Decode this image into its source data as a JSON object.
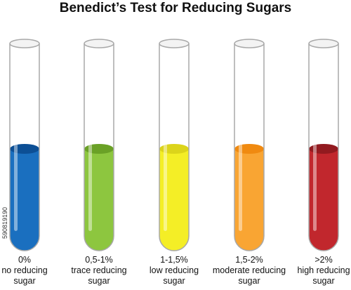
{
  "title": "Benedict’s Test for Reducing Sugars",
  "tubes": [
    {
      "concentration": "0%",
      "description_line1": "no reducing",
      "description_line2": "sugar",
      "color": "#1a6fbf",
      "dark": "#0c4f95"
    },
    {
      "concentration": "0,5-1%",
      "description_line1": "trace reducing",
      "description_line2": "sugar",
      "color": "#8dc63f",
      "dark": "#6aa126"
    },
    {
      "concentration": "1-1,5%",
      "description_line1": "low reducing",
      "description_line2": "sugar",
      "color": "#f4ee26",
      "dark": "#dcd41a"
    },
    {
      "concentration": "1,5-2%",
      "description_line1": "moderate reducing",
      "description_line2": "sugar",
      "color": "#f9a533",
      "dark": "#f08a10"
    },
    {
      "concentration": ">2%",
      "description_line1": "high reducing",
      "description_line2": "sugar",
      "color": "#c1272d",
      "dark": "#921a1f"
    }
  ],
  "watermark": "590819190"
}
